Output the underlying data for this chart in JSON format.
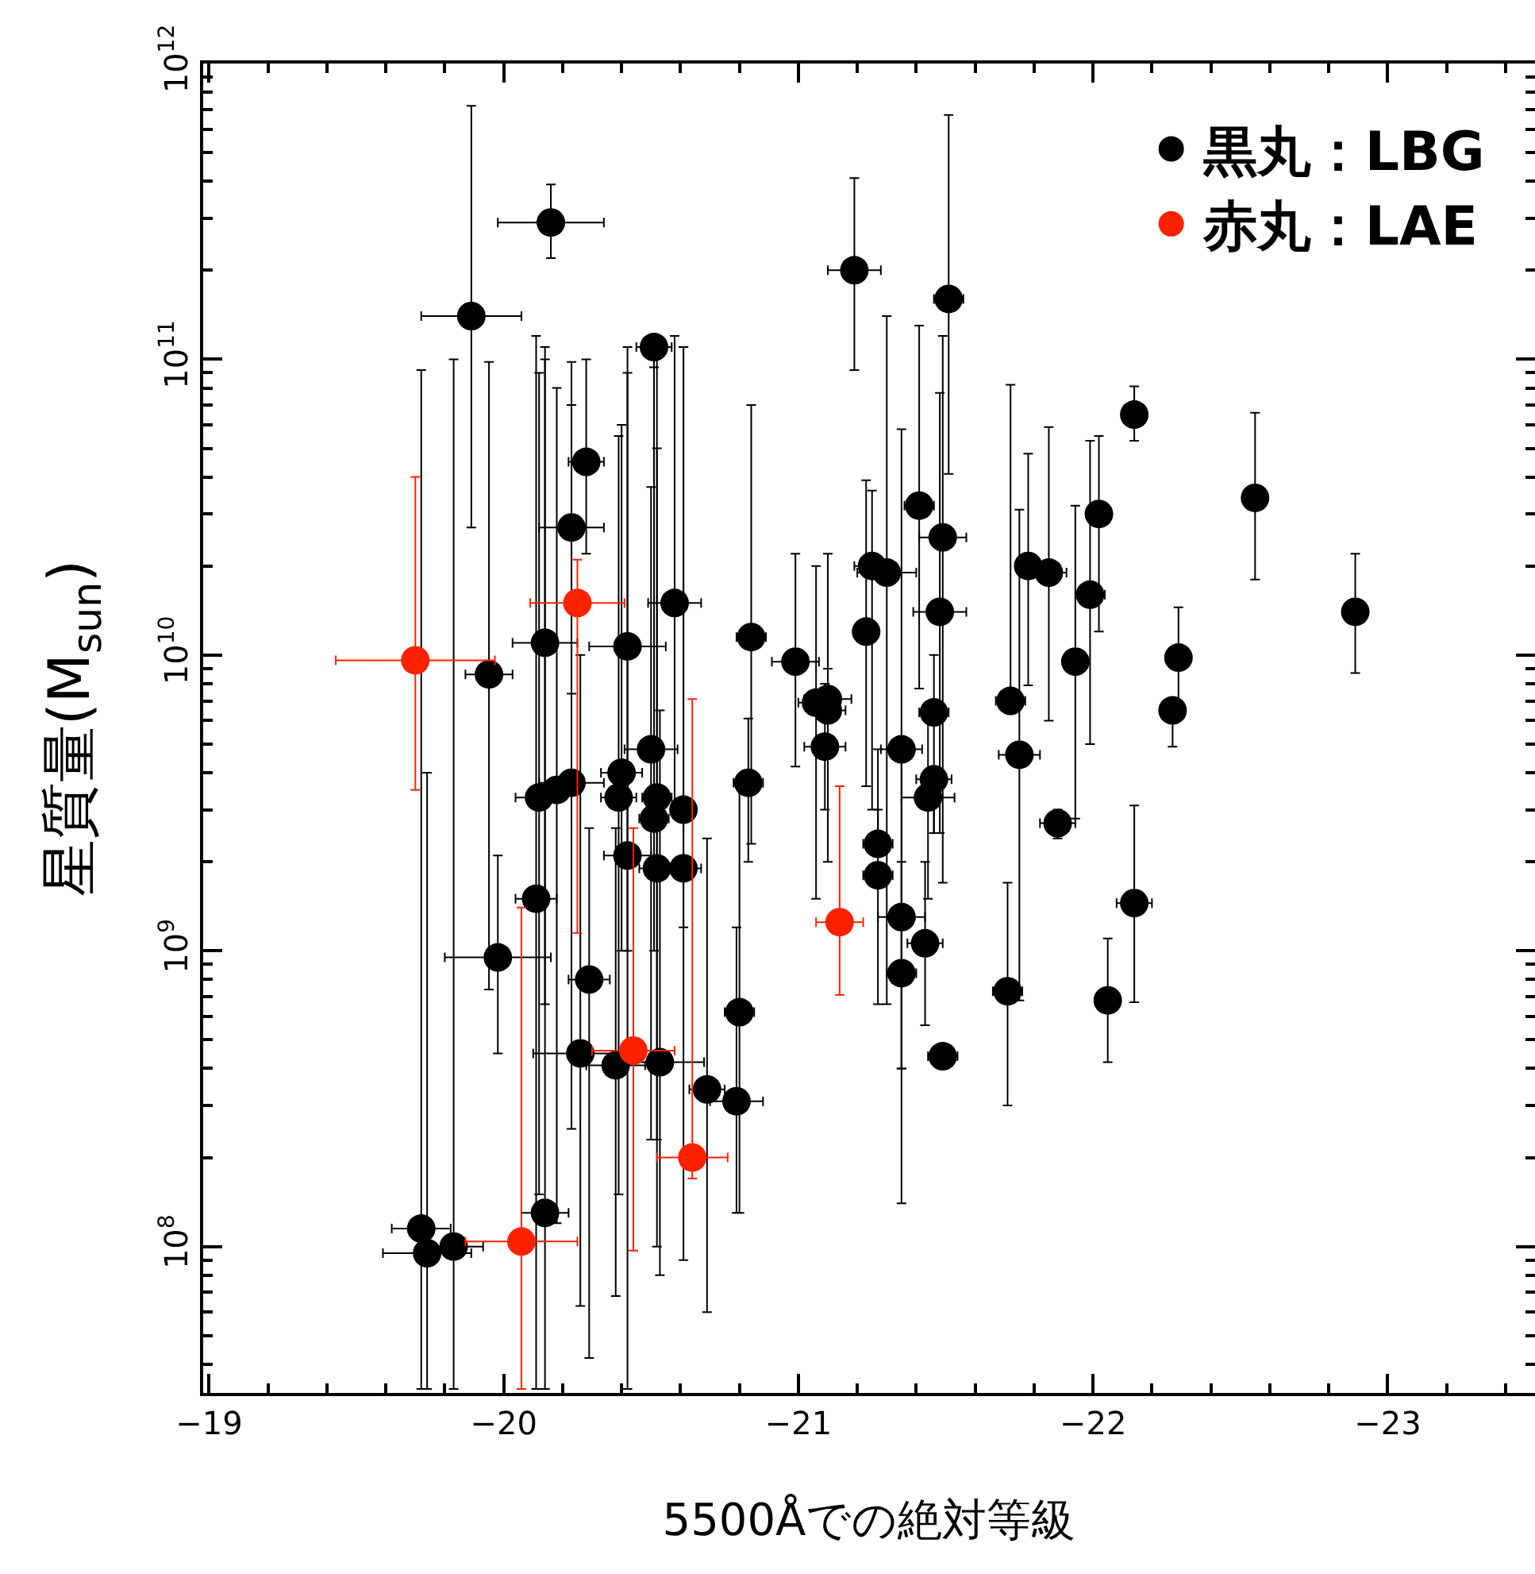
{
  "chart_data": {
    "type": "scatter",
    "xlabel": "5500Åでの絶対等級",
    "ylabel": "星質量(M$_{sun}$)",
    "log": "y",
    "marker": "circle",
    "legend": "top right",
    "xlim": [
      -18.98,
      -23.5
    ],
    "xticks": [
      {
        "value": -19,
        "label": "−19"
      },
      {
        "value": -20,
        "label": "−20"
      },
      {
        "value": -21,
        "label": "−21"
      },
      {
        "value": -22,
        "label": "−22"
      },
      {
        "value": -23,
        "label": "−23"
      }
    ],
    "ylim": [
      32000000.0,
      1000000000000.0
    ],
    "yticks": [
      {
        "value": 100000000.0,
        "label": "10$^{8}$"
      },
      {
        "value": 1000000000.0,
        "label": "10$^{9}$"
      },
      {
        "value": 10000000000.0,
        "label": "10$^{10}$"
      },
      {
        "value": 100000000000.0,
        "label": "10$^{11}$"
      },
      {
        "value": 1000000000000.0,
        "label": "10$^{12}$"
      }
    ],
    "series": [
      {
        "name": "黒丸：LBG",
        "color": "#000000",
        "x": [
          -20.16,
          -19.89,
          -20.51,
          -21.19,
          -21.51,
          -22.14,
          -22.55,
          -22.89,
          -22.29,
          -22.27,
          -22.02,
          -21.78,
          -21.85,
          -21.99,
          -21.94,
          -21.41,
          -21.49,
          -21.48,
          -21.46,
          -21.72,
          -21.25,
          -21.3,
          -21.23,
          -21.35,
          -21.75,
          -21.46,
          -21.44,
          -21.88,
          -21.27,
          -21.27,
          -21.35,
          -21.43,
          -22.14,
          -21.35,
          -21.71,
          -22.05,
          -21.49,
          -21.06,
          -21.1,
          -21.1,
          -21.09,
          -20.83,
          -20.5,
          -20.4,
          -20.52,
          -20.39,
          -20.61,
          -20.51,
          -20.23,
          -20.18,
          -20.12,
          -20.42,
          -20.52,
          -20.61,
          -20.11,
          -19.98,
          -20.29,
          -20.8,
          -20.26,
          -20.38,
          -20.53,
          -20.69,
          -20.79,
          -20.14,
          -19.72,
          -19.74,
          -19.83,
          -20.28,
          -20.23,
          -20.14,
          -19.95,
          -20.42,
          -20.58,
          -20.84,
          -20.99
        ],
        "values": [
          290000000000.0,
          140000000000.0,
          110000000000.0,
          200000000000.0,
          160000000000.0,
          65000000000.0,
          34000000000.0,
          14000000000.0,
          9800000000.0,
          6500000000.0,
          30000000000.0,
          20000000000.0,
          19000000000.0,
          16000000000.0,
          9500000000.0,
          32000000000.0,
          25000000000.0,
          14000000000.0,
          6400000000.0,
          7000000000.0,
          20000000000.0,
          19000000000.0,
          12000000000.0,
          4800000000.0,
          4600000000.0,
          3800000000.0,
          3300000000.0,
          2700000000.0,
          2300000000.0,
          1800000000.0,
          1300000000.0,
          1060000000.0,
          1450000000.0,
          840000000.0,
          730000000.0,
          680000000.0,
          440000000.0,
          6900000000.0,
          7100000000.0,
          6500000000.0,
          4900000000.0,
          3700000000.0,
          4800000000.0,
          4000000000.0,
          3300000000.0,
          3300000000.0,
          3000000000.0,
          2800000000.0,
          3700000000.0,
          3500000000.0,
          3300000000.0,
          2100000000.0,
          1900000000.0,
          1900000000.0,
          1500000000.0,
          950000000.0,
          800000000.0,
          620000000.0,
          450000000.0,
          410000000.0,
          420000000.0,
          340000000.0,
          310000000.0,
          130000000.0,
          115000000.0,
          95000000.0,
          100000000.0,
          45000000000.0,
          27000000000.0,
          11000000000.0,
          8600000000.0,
          10700000000.0,
          15000000000.0,
          11500000000.0,
          9500000000.0
        ],
        "errors": [
          [
            220000000000.0,
            390000000000.0
          ],
          [
            27000000000.0,
            720000000000.0
          ],
          [
            94000000000.0,
            120000000000.0
          ],
          [
            92000000000.0,
            410000000000.0
          ],
          [
            41000000000.0,
            670000000000.0
          ],
          [
            53000000000.0,
            81000000000.0
          ],
          [
            18000000000.0,
            66000000000.0
          ],
          [
            8700000000.0,
            22000000000.0
          ],
          [
            6800000000.0,
            14500000000.0
          ],
          [
            4900000000.0,
            6500000000.0
          ],
          [
            12000000000.0,
            55000000000.0
          ],
          [
            7900000000.0,
            48000000000.0
          ],
          [
            6000000000.0,
            59000000000.0
          ],
          [
            5000000000.0,
            53000000000.0
          ],
          [
            2800000000.0,
            32000000000.0
          ],
          [
            7700000000.0,
            130000000000.0
          ],
          [
            1700000000.0,
            120000000000.0
          ],
          [
            2500000000.0,
            77000000000.0
          ],
          [
            2500000000.0,
            10000000000.0
          ],
          [
            7000000000.0,
            82000000000.0
          ],
          [
            3000000000.0,
            36000000000.0
          ],
          [
            660000000.0,
            140000000000.0
          ],
          [
            3600000000.0,
            39000000000.0
          ],
          [
            400000000.0,
            58000000000.0
          ],
          [
            680000000.0,
            31000000000.0
          ],
          [
            2500000000.0,
            3800000000.0
          ],
          [
            1500000000.0,
            6000000000.0
          ],
          [
            2400000000.0,
            3000000000.0
          ],
          [
            2300000000.0,
            4800000000.0
          ],
          [
            660000000.0,
            3000000000.0
          ],
          [
            140000000.0,
            4400000000.0
          ],
          [
            560000000.0,
            2000000000.0
          ],
          [
            670000000.0,
            3100000000.0
          ],
          [
            400000000.0,
            2000000000.0
          ],
          [
            300000000.0,
            1700000000.0
          ],
          [
            420000000.0,
            1100000000.0
          ],
          null,
          [
            1500000000.0,
            20000000000.0
          ],
          [
            2000000000.0,
            22000000000.0
          ],
          [
            4500000000.0,
            9000000000.0
          ],
          [
            3000000000.0,
            8000000000.0
          ],
          [
            2000000000.0,
            6100000000.0
          ],
          [
            230000000.0,
            37000000000.0
          ],
          [
            1000000000.0,
            60000000000.0
          ],
          [
            230000000.0,
            50000000000.0
          ],
          [
            150000000.0,
            55000000000.0
          ],
          [
            1200000000.0,
            110000000000.0
          ],
          [
            1000000000.0,
            100000000000.0
          ],
          [
            250000000.0,
            70000000000.0
          ],
          [
            120000000.0,
            80000000000.0
          ],
          [
            150000000.0,
            90000000000.0
          ],
          [
            33000000.0,
            90000000000.0
          ],
          [
            100000000.0,
            120000000000.0
          ],
          [
            90000000.0,
            110000000000.0
          ],
          [
            33000000.0,
            120000000000.0
          ],
          [
            450000000.0,
            2100000000.0
          ],
          [
            42000000.0,
            2600000000.0
          ],
          [
            130000000.0,
            3800000000.0
          ],
          [
            63000000.0,
            10000000000.0
          ],
          [
            68000000.0,
            2600000000.0
          ],
          [
            80000000.0,
            6500000000.0
          ],
          [
            60000000.0,
            2400000000.0
          ],
          [
            130000000.0,
            1200000000.0
          ],
          [
            33000000.0,
            100000000000.0
          ],
          [
            33000000.0,
            92000000000.0
          ],
          [
            33000000.0,
            4000000000.0
          ],
          [
            33000000.0,
            100000000000.0
          ],
          [
            22000000000.0,
            100000000000.0
          ],
          [
            7400000000.0,
            98000000000.0
          ],
          [
            660000000.0,
            110000000000.0
          ],
          [
            740000000.0,
            98000000000.0
          ],
          [
            1000000000.0,
            110000000000.0
          ],
          [
            3000000000.0,
            120000000000.0
          ],
          [
            2300000000.0,
            70000000000.0
          ],
          [
            4200000000.0,
            22000000000.0
          ]
        ],
        "xerrors": [
          0.18,
          0.17,
          0.06,
          0.09,
          0.05,
          0.04,
          null,
          null,
          null,
          null,
          0.03,
          0.03,
          0.06,
          0.05,
          0.04,
          0.05,
          0.08,
          0.09,
          0.05,
          0.05,
          0.06,
          0.1,
          0.04,
          0.07,
          0.07,
          0.06,
          0.09,
          0.06,
          0.05,
          0.05,
          0.08,
          0.06,
          0.06,
          0.05,
          0.05,
          null,
          0.05,
          0.06,
          0.08,
          0.06,
          0.07,
          0.05,
          0.09,
          0.07,
          0.05,
          0.06,
          0.04,
          0.05,
          0.11,
          0.07,
          0.08,
          0.08,
          0.06,
          0.06,
          0.07,
          0.18,
          0.07,
          0.05,
          0.16,
          0.1,
          0.15,
          0.06,
          0.09,
          0.08,
          0.1,
          0.15,
          0.1,
          0.06,
          0.11,
          0.11,
          0.08,
          0.13,
          0.09,
          0.05,
          0.08
        ]
      },
      {
        "name": "赤丸：LAE",
        "color": "#ff2200",
        "x": [
          -19.7,
          -20.25,
          -20.06,
          -20.44,
          -20.64,
          -21.14
        ],
        "values": [
          9600000000.0,
          15000000000.0,
          104000000.0,
          460000000.0,
          200000000.0,
          1250000000.0
        ],
        "errors": [
          [
            3500000000.0,
            40000000000.0
          ],
          [
            1150000000.0,
            21000000000.0
          ],
          [
            33000000.0,
            1400000000.0
          ],
          [
            97000000.0,
            2600000000.0
          ],
          [
            170000000.0,
            7100000000.0
          ],
          [
            710000000.0,
            3600000000.0
          ]
        ],
        "xerrors": [
          0.27,
          0.16,
          0.19,
          0.14,
          0.12,
          0.08
        ]
      }
    ]
  }
}
